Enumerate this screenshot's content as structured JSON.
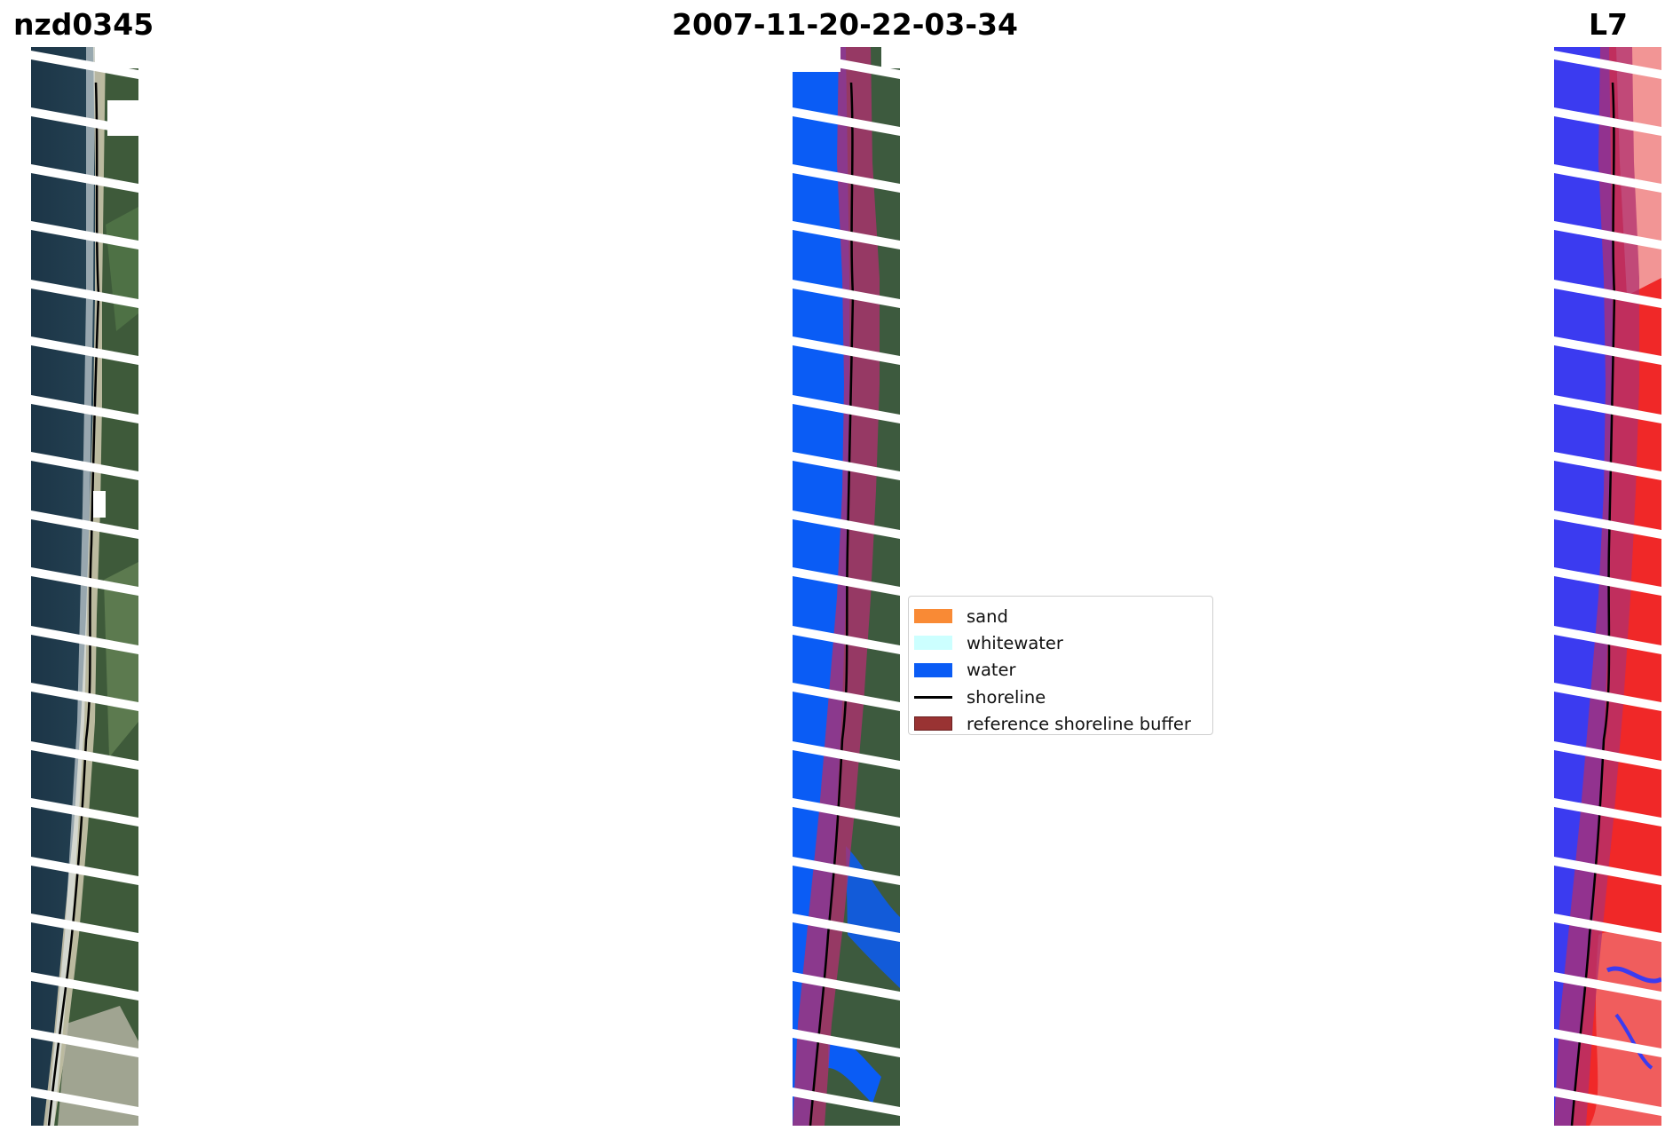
{
  "titles": {
    "left": "nzd0345",
    "center": "2007-11-20-22-03-34",
    "right": "L7"
  },
  "panels": [
    {
      "id": "rgb",
      "description_name": "rgb-satellite-panel"
    },
    {
      "id": "classified",
      "description_name": "classified-panel"
    },
    {
      "id": "mndwi",
      "description_name": "index-panel"
    }
  ],
  "legend": {
    "items": [
      {
        "label": "sand",
        "color": "#f98a35",
        "kind": "patch"
      },
      {
        "label": "whitewater",
        "color": "#ccffff",
        "kind": "patch"
      },
      {
        "label": "water",
        "color": "#0a5cf5",
        "kind": "patch"
      },
      {
        "label": "shoreline",
        "color": "#000000",
        "kind": "line"
      },
      {
        "label": "reference shoreline buffer",
        "color": "#993333",
        "kind": "patch"
      }
    ]
  },
  "colors": {
    "ocean": "#1f3a4c",
    "land": "#3f5a3c",
    "beach": "#c8c2a8",
    "water_class": "#0a5cf5",
    "buffer": "#b0306f",
    "index_water": "#3b3bf0",
    "index_land": "#f02828",
    "scanline_gap": "#ffffff"
  }
}
